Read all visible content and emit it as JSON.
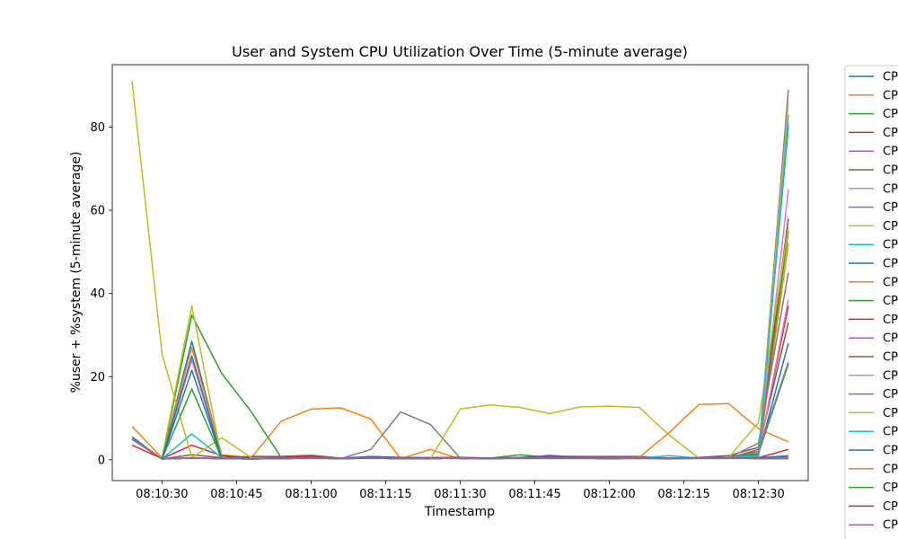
{
  "chart_data": {
    "type": "line",
    "title": "User and System CPU Utilization Over Time (5-minute average)",
    "xlabel": "Timestamp",
    "ylabel": "%user + %system (5-minute average)",
    "ylim": [
      -5,
      95
    ],
    "xlim": [
      "08:10:20",
      "08:12:40"
    ],
    "x_ticks": [
      "08:10:30",
      "08:10:45",
      "08:11:00",
      "08:11:15",
      "08:11:30",
      "08:11:45",
      "08:12:00",
      "08:12:15",
      "08:12:30"
    ],
    "y_ticks": [
      0,
      20,
      40,
      60,
      80
    ],
    "grid": false,
    "legend_position": "outside-right (clipped)",
    "x": [
      "08:10:24",
      "08:10:30",
      "08:10:36",
      "08:10:42",
      "08:10:48",
      "08:10:54",
      "08:11:00",
      "08:11:06",
      "08:11:12",
      "08:11:18",
      "08:11:24",
      "08:11:30",
      "08:11:36",
      "08:11:42",
      "08:11:48",
      "08:11:54",
      "08:12:00",
      "08:12:06",
      "08:12:12",
      "08:12:18",
      "08:12:24",
      "08:12:30",
      "08:12:36"
    ],
    "series": [
      {
        "name": "CP",
        "color": "#1f77b4",
        "values": [
          5.5,
          0.2,
          28.5,
          1.0,
          0.5,
          0.5,
          0.7,
          0.4,
          0.8,
          0.6,
          0.5,
          0.6,
          0.4,
          0.5,
          0.6,
          0.5,
          0.5,
          0.6,
          0.4,
          0.5,
          0.6,
          1.5,
          80.0
        ]
      },
      {
        "name": "CP",
        "color": "#ff7f0e",
        "values": [
          8.0,
          0.5,
          27.0,
          1.2,
          0.5,
          9.3,
          12.2,
          12.5,
          9.8,
          0.3,
          2.5,
          0.2,
          0.3,
          0.3,
          0.3,
          0.3,
          0.2,
          0.3,
          0.2,
          0.3,
          0.3,
          0.8,
          52.0
        ]
      },
      {
        "name": "CP",
        "color": "#2ca02c",
        "values": [
          5.0,
          0.3,
          34.8,
          20.8,
          11.5,
          0.5,
          0.5,
          0.3,
          0.4,
          0.4,
          0.5,
          0.5,
          0.4,
          1.2,
          0.6,
          0.5,
          0.4,
          0.5,
          0.4,
          0.5,
          0.6,
          2.0,
          55.0
        ]
      },
      {
        "name": "CP",
        "color": "#d62728",
        "values": [
          3.5,
          0.3,
          3.5,
          1.0,
          0.5,
          0.5,
          0.8,
          0.3,
          0.5,
          0.4,
          0.5,
          0.6,
          0.4,
          0.5,
          0.4,
          0.5,
          0.4,
          0.5,
          0.4,
          0.5,
          0.5,
          1.5,
          37.0
        ]
      },
      {
        "name": "CP",
        "color": "#9467bd",
        "values": [
          5.0,
          0.2,
          0.5,
          0.3,
          0.2,
          0.3,
          0.5,
          0.3,
          0.5,
          0.4,
          0.3,
          0.4,
          0.3,
          0.4,
          1.1,
          0.5,
          0.4,
          0.6,
          0.3,
          0.4,
          0.5,
          1.0,
          89.0
        ]
      },
      {
        "name": "CP",
        "color": "#8c564b",
        "values": [
          5.0,
          0.2,
          1.2,
          0.5,
          0.8,
          0.8,
          1.1,
          0.4,
          0.6,
          0.5,
          0.4,
          0.5,
          0.4,
          0.6,
          0.9,
          0.8,
          0.8,
          0.8,
          0.4,
          0.6,
          1.0,
          3.0,
          58.0
        ]
      },
      {
        "name": "CP",
        "color": "#e377c2",
        "values": [
          5.0,
          0.3,
          24.0,
          0.5,
          0.3,
          0.3,
          0.4,
          0.3,
          0.4,
          0.3,
          0.3,
          0.4,
          0.3,
          0.4,
          0.5,
          0.4,
          0.3,
          0.4,
          0.3,
          0.4,
          0.4,
          1.5,
          65.0
        ]
      },
      {
        "name": "CP",
        "color": "#7f7f7f",
        "values": [
          5.0,
          0.2,
          0.5,
          0.3,
          0.2,
          0.3,
          0.5,
          0.3,
          2.5,
          11.5,
          8.5,
          0.4,
          0.3,
          0.4,
          0.5,
          0.4,
          0.3,
          0.4,
          0.3,
          0.4,
          0.5,
          4.0,
          45.0
        ]
      },
      {
        "name": "CP",
        "color": "#bcbd22",
        "values": [
          91.0,
          25.5,
          0.5,
          5.3,
          0.5,
          0.3,
          0.4,
          0.3,
          0.4,
          0.3,
          0.3,
          12.2,
          13.2,
          12.6,
          11.1,
          12.7,
          12.9,
          12.6,
          6.0,
          0.4,
          0.5,
          9.0,
          56.0
        ]
      },
      {
        "name": "CP",
        "color": "#17becf",
        "values": [
          5.0,
          0.2,
          6.2,
          0.5,
          0.3,
          0.3,
          0.4,
          0.3,
          0.4,
          0.3,
          0.3,
          0.4,
          0.3,
          0.4,
          0.5,
          0.4,
          0.3,
          0.4,
          1.0,
          0.4,
          0.5,
          1.0,
          83.0
        ]
      },
      {
        "name": "CP",
        "color": "#1f77b4",
        "values": [
          5.0,
          0.2,
          21.5,
          0.4,
          0.3,
          0.3,
          0.5,
          0.3,
          0.5,
          0.4,
          0.3,
          0.5,
          0.3,
          0.5,
          0.6,
          0.5,
          0.4,
          0.5,
          0.4,
          0.5,
          0.5,
          1.2,
          28.0
        ]
      },
      {
        "name": "CP",
        "color": "#ff7f0e",
        "values": [
          5.0,
          0.2,
          0.4,
          0.3,
          0.2,
          0.3,
          0.4,
          0.3,
          0.4,
          0.3,
          0.3,
          0.4,
          0.3,
          0.4,
          0.4,
          0.4,
          0.3,
          0.6,
          6.5,
          13.3,
          13.5,
          7.5,
          4.3
        ]
      },
      {
        "name": "CP",
        "color": "#2ca02c",
        "values": [
          5.0,
          0.2,
          17.0,
          0.4,
          0.3,
          0.3,
          0.4,
          0.3,
          0.4,
          0.3,
          0.3,
          0.4,
          0.3,
          0.4,
          0.4,
          0.4,
          0.3,
          0.4,
          0.3,
          0.4,
          0.4,
          1.5,
          23.0
        ]
      },
      {
        "name": "CP",
        "color": "#d62728",
        "values": [
          5.0,
          0.2,
          0.4,
          0.3,
          0.2,
          0.3,
          0.4,
          0.3,
          0.4,
          0.3,
          0.3,
          0.4,
          0.3,
          0.4,
          0.4,
          0.4,
          0.3,
          0.4,
          0.3,
          0.4,
          0.4,
          0.5,
          2.5
        ]
      },
      {
        "name": "CP",
        "color": "#9467bd",
        "values": [
          5.0,
          0.2,
          0.4,
          0.3,
          0.2,
          0.3,
          0.4,
          0.3,
          0.4,
          0.3,
          0.3,
          0.4,
          0.3,
          0.4,
          0.4,
          0.4,
          0.3,
          0.4,
          0.3,
          0.4,
          0.4,
          0.5,
          1.0
        ]
      },
      {
        "name": "CP",
        "color": "#8c564b",
        "values": [
          5.0,
          0.2,
          0.4,
          0.3,
          0.2,
          0.3,
          0.4,
          0.3,
          0.4,
          0.3,
          0.3,
          0.4,
          0.3,
          0.4,
          0.4,
          0.4,
          0.3,
          0.4,
          0.3,
          0.4,
          0.4,
          2.5,
          33.0
        ]
      },
      {
        "name": "CP",
        "color": "#e377c2",
        "values": [
          5.0,
          0.2,
          0.4,
          0.3,
          0.2,
          0.3,
          0.4,
          0.3,
          0.4,
          0.3,
          0.3,
          0.4,
          0.3,
          0.4,
          0.4,
          0.4,
          0.3,
          0.4,
          0.3,
          0.4,
          0.4,
          1.0,
          38.5
        ]
      },
      {
        "name": "CP",
        "color": "#7f7f7f",
        "values": [
          5.0,
          0.2,
          0.4,
          0.3,
          0.2,
          0.3,
          0.4,
          0.3,
          0.4,
          0.3,
          0.3,
          0.4,
          0.3,
          0.4,
          0.4,
          0.4,
          0.3,
          0.4,
          0.3,
          0.4,
          0.4,
          2.0,
          23.5
        ]
      },
      {
        "name": "CP",
        "color": "#bcbd22",
        "values": [
          5.0,
          0.5,
          37.0,
          0.4,
          0.3,
          0.3,
          0.4,
          0.3,
          0.4,
          0.3,
          0.3,
          0.4,
          0.3,
          0.4,
          0.4,
          0.4,
          0.3,
          0.4,
          0.3,
          0.4,
          0.4,
          1.0,
          86.0
        ]
      },
      {
        "name": "CP",
        "color": "#17becf",
        "values": [
          5.0,
          0.2,
          0.4,
          0.3,
          0.2,
          0.3,
          0.4,
          0.3,
          0.4,
          0.3,
          0.3,
          0.4,
          0.3,
          0.4,
          0.4,
          0.4,
          0.3,
          0.4,
          0.3,
          0.4,
          0.4,
          1.0,
          81.0
        ]
      },
      {
        "name": "CP",
        "color": "#1f77b4",
        "values": [
          5.0,
          0.2,
          25.0,
          0.4,
          0.3,
          0.3,
          0.4,
          0.3,
          0.4,
          0.3,
          0.3,
          0.4,
          0.3,
          0.4,
          0.4,
          0.4,
          0.3,
          0.4,
          0.3,
          0.4,
          0.4,
          0.5,
          0.8
        ]
      },
      {
        "name": "CP",
        "color": "#ff7f0e",
        "values": [
          5.0,
          0.2,
          0.4,
          0.3,
          0.2,
          0.3,
          0.4,
          0.3,
          0.4,
          0.3,
          0.3,
          0.4,
          0.3,
          0.4,
          0.4,
          0.4,
          0.3,
          0.4,
          0.3,
          0.4,
          0.4,
          0.3,
          0.5
        ]
      },
      {
        "name": "CP",
        "color": "#2ca02c",
        "values": [
          5.0,
          0.2,
          0.4,
          0.3,
          0.2,
          0.3,
          0.4,
          0.3,
          0.4,
          0.3,
          0.3,
          0.4,
          0.3,
          0.4,
          0.4,
          0.4,
          0.3,
          0.4,
          0.3,
          0.4,
          0.4,
          0.3,
          0.3
        ]
      },
      {
        "name": "CP",
        "color": "#d62728",
        "values": [
          5.0,
          0.2,
          0.4,
          0.3,
          0.2,
          0.3,
          0.4,
          0.3,
          0.4,
          0.3,
          0.3,
          0.4,
          0.3,
          0.4,
          0.4,
          0.4,
          0.3,
          0.4,
          0.3,
          0.4,
          0.4,
          0.3,
          0.3
        ]
      },
      {
        "name": "CP",
        "color": "#9467bd",
        "values": [
          5.0,
          0.2,
          0.4,
          0.3,
          0.2,
          0.3,
          0.4,
          0.3,
          0.4,
          0.3,
          0.3,
          0.4,
          0.3,
          0.4,
          0.4,
          0.4,
          0.3,
          0.4,
          0.3,
          0.4,
          0.4,
          0.3,
          0.3
        ]
      }
    ]
  }
}
